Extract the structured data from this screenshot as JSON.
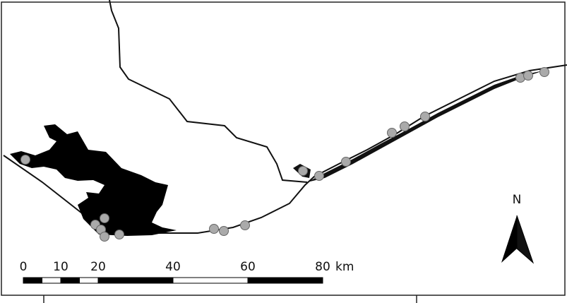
{
  "scale_bar": {
    "labels": [
      0,
      10,
      20,
      40,
      60,
      80
    ],
    "unit": "km"
  },
  "north_arrow": {
    "label": "N"
  }
}
